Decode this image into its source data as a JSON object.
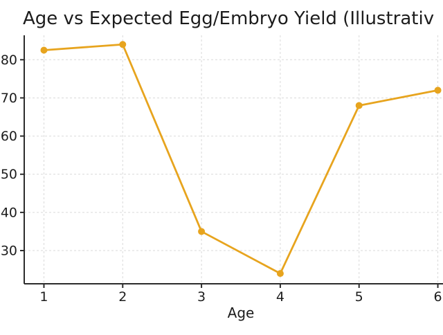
{
  "chart_data": {
    "type": "line",
    "title": "Age vs Expected Egg/Embryo Yield (Illustrativ",
    "xlabel": "Age",
    "ylabel": "",
    "x": [
      1,
      2,
      3,
      4,
      5,
      6
    ],
    "y": [
      82.5,
      84,
      35,
      24,
      68,
      72
    ],
    "series": [
      {
        "name": "Expected Egg/Embryo Yield",
        "values": [
          82.5,
          84,
          35,
          24,
          68,
          72
        ]
      }
    ],
    "x_ticks": [
      1,
      2,
      3,
      4,
      5,
      6
    ],
    "y_ticks": [
      30,
      40,
      50,
      60,
      70,
      80
    ],
    "xlim": [
      0.75,
      6.25
    ],
    "ylim": [
      21.3,
      86.4
    ],
    "grid": true,
    "grid_style": "dashed",
    "legend": false,
    "line_color": "#E7A41E",
    "marker": "circle",
    "marker_color": "#E7A41E",
    "grid_color": "#d9d9d9",
    "axis_color": "#2b2b2b",
    "text_color": "#1c1c1c",
    "background": "#ffffff"
  }
}
